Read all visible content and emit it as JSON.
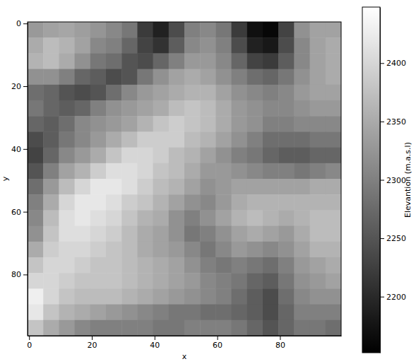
{
  "chart_data": {
    "type": "heatmap",
    "x_label": "x",
    "y_label": "y",
    "color": "gray",
    "xlim": [
      -0.5,
      99.5
    ],
    "ylim": [
      99.5,
      -0.5
    ],
    "xticks": [
      0,
      20,
      40,
      60,
      80
    ],
    "yticks": [
      0,
      20,
      40,
      60,
      80
    ],
    "x_edges": [
      -0.5,
      4.5,
      9.5,
      14.5,
      19.5,
      24.5,
      29.5,
      34.5,
      39.5,
      44.5,
      49.5,
      54.5,
      59.5,
      64.5,
      69.5,
      74.5,
      79.5,
      84.5,
      89.5,
      94.5,
      99.5
    ],
    "y_edges": [
      -0.5,
      4.5,
      9.5,
      14.5,
      19.5,
      24.5,
      29.5,
      34.5,
      39.5,
      44.5,
      49.5,
      54.5,
      59.5,
      64.5,
      69.5,
      74.5,
      79.5,
      84.5,
      89.5,
      94.5,
      99.5
    ],
    "values": [
      [
        2330,
        2340,
        2345,
        2335,
        2325,
        2310,
        2290,
        2220,
        2190,
        2240,
        2300,
        2310,
        2290,
        2220,
        2170,
        2160,
        2230,
        2320,
        2340,
        2340
      ],
      [
        2350,
        2370,
        2360,
        2340,
        2310,
        2300,
        2270,
        2230,
        2210,
        2260,
        2310,
        2320,
        2300,
        2240,
        2190,
        2180,
        2240,
        2310,
        2340,
        2350
      ],
      [
        2360,
        2370,
        2350,
        2320,
        2290,
        2280,
        2250,
        2240,
        2270,
        2300,
        2330,
        2330,
        2310,
        2270,
        2230,
        2220,
        2260,
        2310,
        2340,
        2350
      ],
      [
        2320,
        2320,
        2300,
        2270,
        2260,
        2240,
        2250,
        2290,
        2320,
        2340,
        2350,
        2340,
        2320,
        2300,
        2280,
        2270,
        2290,
        2320,
        2340,
        2350
      ],
      [
        2280,
        2270,
        2250,
        2240,
        2250,
        2280,
        2310,
        2330,
        2340,
        2350,
        2360,
        2360,
        2340,
        2320,
        2310,
        2300,
        2310,
        2330,
        2340,
        2340
      ],
      [
        2290,
        2270,
        2260,
        2270,
        2300,
        2320,
        2330,
        2340,
        2350,
        2370,
        2380,
        2370,
        2350,
        2330,
        2320,
        2310,
        2310,
        2320,
        2330,
        2330
      ],
      [
        2270,
        2260,
        2280,
        2310,
        2320,
        2330,
        2340,
        2360,
        2380,
        2390,
        2380,
        2370,
        2350,
        2330,
        2320,
        2300,
        2300,
        2310,
        2310,
        2310
      ],
      [
        2240,
        2260,
        2290,
        2310,
        2330,
        2350,
        2370,
        2390,
        2390,
        2390,
        2370,
        2360,
        2340,
        2320,
        2300,
        2280,
        2280,
        2280,
        2290,
        2290
      ],
      [
        2230,
        2270,
        2310,
        2330,
        2350,
        2380,
        2400,
        2400,
        2390,
        2370,
        2360,
        2340,
        2320,
        2300,
        2290,
        2270,
        2260,
        2260,
        2270,
        2270
      ],
      [
        2250,
        2300,
        2340,
        2360,
        2390,
        2410,
        2410,
        2400,
        2380,
        2370,
        2350,
        2330,
        2330,
        2320,
        2310,
        2300,
        2300,
        2290,
        2300,
        2310
      ],
      [
        2280,
        2330,
        2370,
        2400,
        2420,
        2420,
        2410,
        2390,
        2370,
        2360,
        2340,
        2320,
        2330,
        2340,
        2340,
        2340,
        2340,
        2340,
        2350,
        2350
      ],
      [
        2300,
        2350,
        2400,
        2420,
        2420,
        2410,
        2390,
        2380,
        2360,
        2340,
        2320,
        2310,
        2330,
        2350,
        2360,
        2360,
        2360,
        2360,
        2360,
        2360
      ],
      [
        2310,
        2370,
        2410,
        2420,
        2410,
        2400,
        2380,
        2360,
        2350,
        2320,
        2300,
        2320,
        2340,
        2360,
        2370,
        2360,
        2350,
        2360,
        2370,
        2370
      ],
      [
        2320,
        2380,
        2410,
        2410,
        2400,
        2390,
        2370,
        2350,
        2340,
        2320,
        2290,
        2300,
        2320,
        2340,
        2350,
        2340,
        2330,
        2350,
        2370,
        2370
      ],
      [
        2350,
        2390,
        2400,
        2400,
        2390,
        2380,
        2370,
        2350,
        2340,
        2330,
        2310,
        2290,
        2310,
        2330,
        2320,
        2310,
        2320,
        2340,
        2360,
        2360
      ],
      [
        2380,
        2400,
        2400,
        2390,
        2380,
        2380,
        2370,
        2360,
        2350,
        2340,
        2320,
        2300,
        2290,
        2300,
        2290,
        2280,
        2300,
        2330,
        2340,
        2350
      ],
      [
        2400,
        2400,
        2390,
        2380,
        2380,
        2380,
        2370,
        2360,
        2350,
        2340,
        2330,
        2310,
        2300,
        2290,
        2270,
        2260,
        2290,
        2320,
        2330,
        2340
      ],
      [
        2430,
        2400,
        2380,
        2370,
        2370,
        2370,
        2360,
        2350,
        2340,
        2330,
        2320,
        2310,
        2300,
        2280,
        2260,
        2240,
        2280,
        2310,
        2320,
        2320
      ],
      [
        2420,
        2380,
        2360,
        2350,
        2340,
        2330,
        2320,
        2310,
        2300,
        2290,
        2290,
        2280,
        2280,
        2270,
        2260,
        2240,
        2270,
        2300,
        2300,
        2300
      ],
      [
        2380,
        2350,
        2330,
        2310,
        2300,
        2300,
        2300,
        2300,
        2290,
        2290,
        2300,
        2300,
        2300,
        2290,
        2270,
        2250,
        2270,
        2290,
        2290,
        2280
      ]
    ],
    "colorbar": {
      "label": "Elevantion (m.a.s.l)",
      "range": [
        2152,
        2448
      ],
      "ticks": [
        2200,
        2250,
        2300,
        2350,
        2400
      ]
    }
  }
}
